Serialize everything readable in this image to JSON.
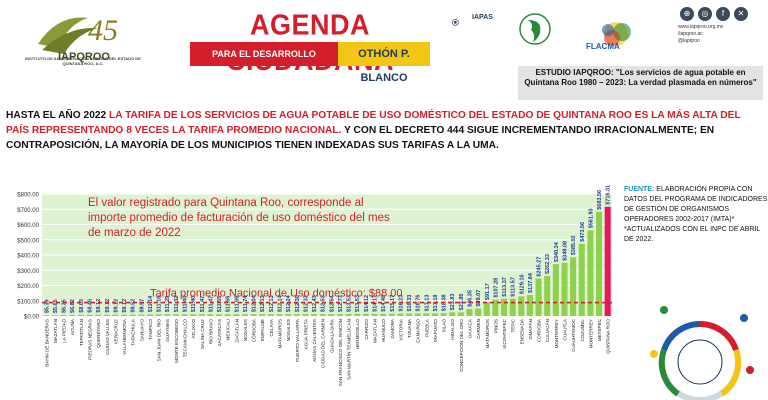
{
  "header": {
    "logo_number": "45",
    "logo_org": "IAPQROO",
    "logo_caption": "INSTITUTO DE ADMINISTRACIÓN PÚBLICA DEL ESTADO DE QUINTANA ROO, A.C.",
    "agenda_title": "AGENDA CIUDADANA",
    "agenda_sub_left": "PARA EL DESARROLLO SUSTENTABLE DE",
    "agenda_sub_right": "OTHÓN P. BLANCO",
    "iapas": "IAPAS",
    "flacma": "FLACMA",
    "social_url": "www.iapqroo.org.mx",
    "social_handle1": "/iapqroo.ac",
    "social_handle2": "@iapqroo",
    "estudio": "ESTUDIO IAPQROO: \"Los servicios de agua potable en Quintana Roo 1980 – 2023: La verdad plasmada en números\""
  },
  "intro": {
    "p1": "HASTA EL AÑO 2022 ",
    "p2_red": "LA TARIFA DE LOS SERVICIOS DE AGUA POTABLE DE USO DOMÉSTICO DEL ESTADO DE QUINTANA ROO ES LA MÁS ALTA DEL PAÍS REPRESENTANDO 8 VECES LA TARIFA PROMEDIO NACIONAL.",
    "p3": " Y CON EL DECRETO 444 SIGUE INCREMENTANDO IRRACIONALMENTE; EN CONTRAPOSICIÓN, LA MAYORÍA DE LOS MUNICIPIOS TIENEN INDEXADAS SUS TARIFAS A LA UMA."
  },
  "fuente": {
    "label": "FUENTE:",
    "text": " ELABORACIÓN PROPIA CON DATOS DEL PROGRAMA DE INDICADORES DE GESTIÓN DE ORGANISMOS OPERADORES 2002-2017 (IMTA)* *ACTUALIZADOS CON EL INPC DE ABRIL DE 2022."
  },
  "colors": {
    "bar": "#8fd14f",
    "highlight": "#e8175d",
    "red": "#d21f2b",
    "bg": "#dff3d2"
  },
  "chart_data": {
    "type": "bar",
    "title": "",
    "xlabel": "",
    "ylabel": "",
    "ylim": [
      0,
      800
    ],
    "yticks": [
      "$0.00",
      "$100.00",
      "$200.00",
      "$300.00",
      "$400.00",
      "$500.00",
      "$600.00",
      "$700.00",
      "$800.00"
    ],
    "average_label": "Tarifa promedio Nacional de Uso doméstico: $88.00",
    "average_value": 88,
    "annotation": "El valor registrado para Quintana Roo, corresponde al importe promedio de facturación de uso doméstico del mes de marzo de 2022",
    "categories": [
      "BAHÍA DE BANDERAS",
      "MAZATLÁN",
      "LA PIEDAD",
      "ACUÑA",
      "TEPATITLÁN",
      "PIEDRAS NEGRAS",
      "QUERÉTARO",
      "CIUDAD VALLES",
      "VERACRUZ",
      "VILLAHERMOSA",
      "TAPACHULA",
      "SAHUAYO",
      "TAMPICO",
      "SAN JUAN DEL RÍO",
      "GUAYMAS",
      "MONTE ESCOBEDO",
      "TECAMACHALCO",
      "ATLIXCO",
      "SALINA CRUZ",
      "RÍO BRAVO",
      "ZACATECAS",
      "MEXICALI",
      "ZACATLÁN",
      "NOGALES",
      "CÓRDOBA",
      "EMPALME",
      "CELAYA",
      "MATAMOROS",
      "NOGALES",
      "PUERTO VALLARTA",
      "AGUA PRIETA",
      "AGUAS CALIENTES",
      "CIUDAD DEL CARMEN",
      "GUADALAJARA",
      "SAN FRANCISCO DEL RINCÓN",
      "SAN MARTÍN TEXMELUCAN",
      "HERMOSILLO",
      "CARRIZO",
      "MAZATLÁN",
      "HUANUCO",
      "ZAMORA",
      "VICTORIA",
      "TIJUANA",
      "CAMARGO",
      "PUEBLA",
      "IRAPUATO",
      "SILAO",
      "HIDALGO",
      "CONCEPCIÓN DEL ORO",
      "OAXACA",
      "CARMEN",
      "MATAMOROS",
      "PINOS",
      "XICOHTEPEC",
      "TEPIC",
      "ENSENADA",
      "ZIMAPÁN",
      "CORDOBA",
      "CULIACÁN",
      "MONTERREY",
      "CUAUTLA",
      "CUAUHTÉMOC",
      "COZUMEL",
      "MONTERREY",
      "METEPEC",
      "QUINTANA ROO"
    ],
    "values": [
      5.39,
      5.65,
      6.35,
      6.82,
      8.03,
      8.46,
      9.12,
      9.12,
      9.12,
      9.12,
      9.52,
      9.57,
      11.14,
      11.16,
      11.29,
      11.32,
      11.4,
      11.4,
      11.47,
      11.47,
      11.55,
      11.66,
      11.66,
      11.74,
      12.04,
      12.13,
      12.13,
      12.14,
      12.24,
      12.3,
      12.37,
      12.47,
      12.53,
      12.54,
      12.77,
      13.53,
      13.53,
      14.12,
      14.17,
      14.48,
      15.17,
      16.23,
      16.33,
      16.76,
      17.13,
      17.18,
      18.38,
      23.83,
      23.85,
      46.35,
      49.07,
      91.17,
      107.28,
      113.37,
      113.57,
      129.16,
      137.84,
      245.27,
      262.33,
      340.34,
      349.08,
      385.02,
      473.56,
      561.93,
      683.56,
      716.31
    ],
    "labels": [
      "$5.39",
      "$5.65",
      "$6.35",
      "$6.82",
      "$8.03",
      "$8.46",
      "$9.12",
      "$9.12",
      "$9.12",
      "$9.12",
      "$9.52",
      "$9.57",
      "$11.14",
      "$11.16",
      "$11.29",
      "$11.32",
      "$11.40",
      "$11.40",
      "$11.47",
      "$11.47",
      "$11.55",
      "$11.66",
      "$11.66",
      "$11.74",
      "$12.04",
      "$12.13",
      "$12.13",
      "$12.14",
      "$12.24",
      "$12.30",
      "$12.37",
      "$12.47",
      "$12.53",
      "$12.54",
      "$12.77",
      "$13.53",
      "$13.53",
      "$14.12",
      "$14.17",
      "$14.48",
      "$15.17",
      "$16.23",
      "$16.33",
      "$16.76",
      "$17.13",
      "$17.18",
      "$18.38",
      "$23.83",
      "$23.85",
      "$46.35",
      "$49.07",
      "$91.17",
      "$107.28",
      "$113.37",
      "$113.57",
      "$129.16",
      "$137.84",
      "$245.27",
      "$262.33",
      "$340.34",
      "$349.08",
      "$385.02",
      "$473.56",
      "$561.93",
      "$683.56",
      "$716.31"
    ]
  }
}
